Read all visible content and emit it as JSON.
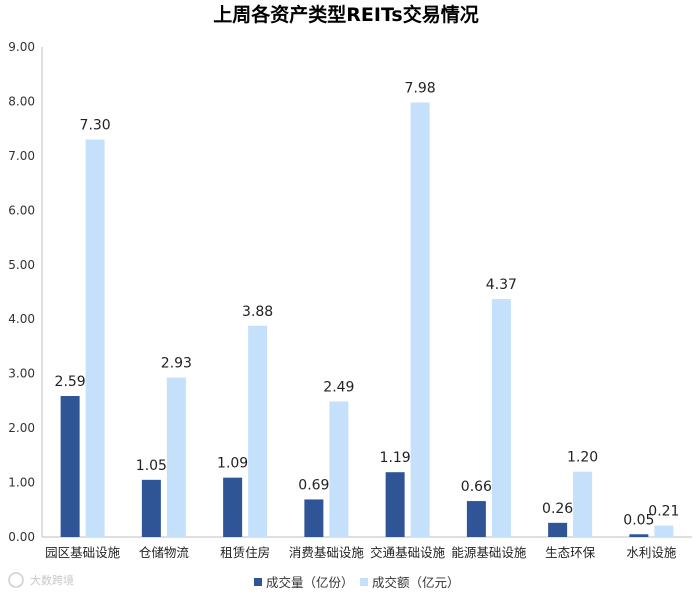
{
  "chart_data": {
    "type": "bar",
    "title": "上周各资产类型REITs交易情况",
    "categories": [
      "园区基础设施",
      "仓储物流",
      "租赁住房",
      "消费基础设施",
      "交通基础设施",
      "能源基础设施",
      "生态环保",
      "水利设施"
    ],
    "series": [
      {
        "name": "成交量（亿份）",
        "color": "#2f5597",
        "values": [
          2.59,
          1.05,
          1.09,
          0.69,
          1.19,
          0.66,
          0.26,
          0.05
        ]
      },
      {
        "name": "成交额（亿元）",
        "color": "#c5e0fa",
        "values": [
          7.3,
          2.93,
          3.88,
          2.49,
          7.98,
          4.37,
          1.2,
          0.21
        ]
      }
    ],
    "ylim": [
      0,
      9
    ],
    "yticks": [
      "0.00",
      "1.00",
      "2.00",
      "3.00",
      "4.00",
      "5.00",
      "6.00",
      "7.00",
      "8.00",
      "9.00"
    ],
    "legend_position": "bottom",
    "grid": false
  },
  "watermark": "大数跨境"
}
